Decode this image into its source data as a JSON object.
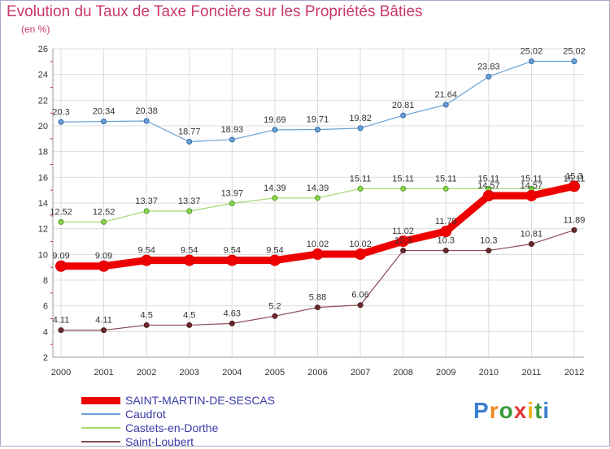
{
  "header": {
    "title": "Evolution du Taux de Taxe Foncière sur les Propriétés Bâties",
    "subtitle": "(en %)"
  },
  "logo": {
    "text": "Proxiti",
    "colors": [
      "#3a7fd0",
      "#f08a1e",
      "#3a9a3a",
      "#e23b3b",
      "#f0b21e",
      "#3a9a3a",
      "#3a7fd0"
    ]
  },
  "chart_data": {
    "type": "line",
    "x": [
      "2000",
      "2001",
      "2002",
      "2003",
      "2004",
      "2005",
      "2006",
      "2007",
      "2008",
      "2009",
      "2010",
      "2011",
      "2012"
    ],
    "ylim": [
      2,
      26
    ],
    "yticks": [
      2,
      4,
      6,
      8,
      10,
      12,
      14,
      16,
      18,
      20,
      22,
      24,
      26
    ],
    "grid": true,
    "legend_position": "bottom-left",
    "series": [
      {
        "name": "SAINT-MARTIN-DE-SESCAS",
        "color": "#ee0000",
        "values": [
          9.09,
          9.09,
          9.54,
          9.54,
          9.54,
          9.54,
          10.02,
          10.02,
          11.02,
          11.79,
          14.57,
          14.57,
          15.3
        ],
        "labels": [
          "9.09",
          "9.09",
          "9.54",
          "9.54",
          "9.54",
          "9.54",
          "10.02",
          "10.02",
          "11.02",
          "11.79",
          "14.57",
          "14.57",
          "15.3"
        ]
      },
      {
        "name": "Caudrot",
        "color": "#6aa0d4",
        "values": [
          20.3,
          20.34,
          20.38,
          18.77,
          18.93,
          19.69,
          19.71,
          19.82,
          20.81,
          21.64,
          23.83,
          25.02,
          25.02
        ],
        "labels": [
          "20.3",
          "20.34",
          "20.38",
          "18.77",
          "18.93",
          "19.69",
          "19.71",
          "19.82",
          "20.81",
          "21.64",
          "23.83",
          "25.02",
          "25.02"
        ]
      },
      {
        "name": "Castets-en-Dorthe",
        "color": "#a2d86a",
        "values": [
          12.52,
          12.52,
          13.37,
          13.37,
          13.97,
          14.39,
          14.39,
          15.11,
          15.11,
          15.11,
          15.11,
          15.11,
          15.11
        ],
        "labels": [
          "12.52",
          "12.52",
          "13.37",
          "13.37",
          "13.97",
          "14.39",
          "14.39",
          "15.11",
          "15.11",
          "15.11",
          "15.11",
          "15.11",
          "15.11"
        ]
      },
      {
        "name": "Saint-Loubert",
        "color": "#8a4a52",
        "values": [
          4.11,
          4.11,
          4.5,
          4.5,
          4.63,
          5.2,
          5.88,
          6.06,
          10.3,
          10.3,
          10.3,
          10.81,
          11.89
        ],
        "labels": [
          "4.11",
          "4.11",
          "4.5",
          "4.5",
          "4.63",
          "5.2",
          "5.88",
          "6.06",
          "10.3",
          "10.3",
          "10.3",
          "10.81",
          "11.89"
        ]
      }
    ]
  }
}
